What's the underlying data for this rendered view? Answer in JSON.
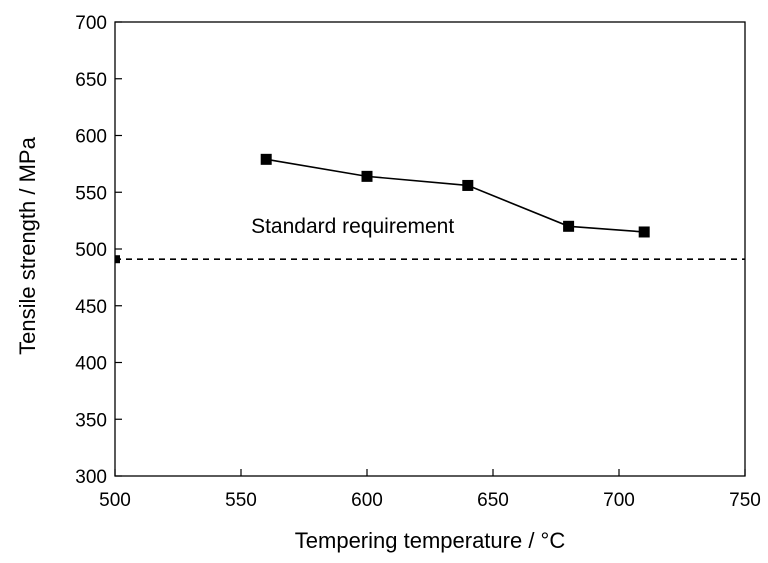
{
  "chart_data": {
    "type": "line",
    "title": "",
    "xlabel": "Tempering temperature / °C",
    "ylabel": "Tensile strength / MPa",
    "xlim": [
      500,
      750
    ],
    "ylim": [
      300,
      700
    ],
    "xticks": [
      500,
      550,
      600,
      650,
      700,
      750
    ],
    "yticks": [
      300,
      350,
      400,
      450,
      500,
      550,
      600,
      650,
      700
    ],
    "grid": false,
    "series": [
      {
        "x": [
          560,
          600,
          640,
          680,
          710
        ],
        "y": [
          579,
          564,
          556,
          520,
          515
        ],
        "marker": "square",
        "color": "#000000"
      }
    ],
    "reference_line": {
      "y": 491,
      "style": "dashed",
      "label": "Standard requirement",
      "label_anchor": [
        554,
        514
      ]
    }
  }
}
